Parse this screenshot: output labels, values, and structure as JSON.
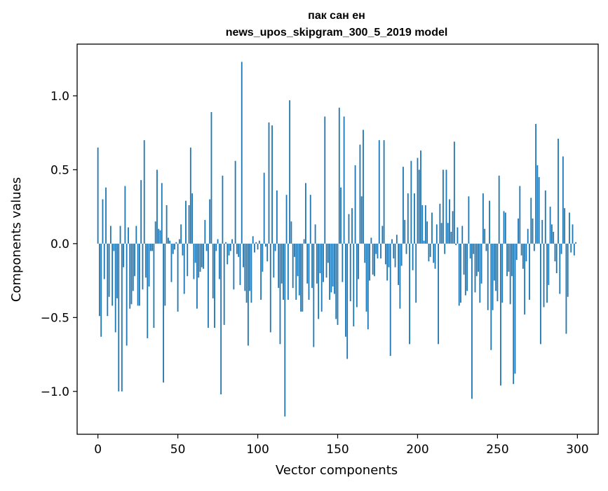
{
  "chart_data": {
    "type": "bar",
    "title_line1": "пак сан ен",
    "title_line2": "news_upos_skipgram_300_5_2019 model",
    "xlabel": "Vector components",
    "ylabel": "Components values",
    "xlim": [
      -13,
      313
    ],
    "ylim": [
      -1.29,
      1.35
    ],
    "xticks": [
      0,
      50,
      100,
      150,
      200,
      250,
      300
    ],
    "xtick_labels": [
      "0",
      "50",
      "100",
      "150",
      "200",
      "250",
      "300"
    ],
    "yticks": [
      -1.0,
      -0.5,
      0.0,
      0.5,
      1.0
    ],
    "ytick_labels": [
      "−1.0",
      "−0.5",
      "0.0",
      "0.5",
      "1.0"
    ],
    "bar_color": "#1f77b4",
    "grid": false,
    "values": [
      0.65,
      -0.49,
      -0.63,
      0.3,
      -0.24,
      0.38,
      -0.49,
      -0.36,
      0.12,
      -0.42,
      -0.05,
      -0.6,
      -0.37,
      -1.0,
      0.12,
      -1.0,
      -0.16,
      0.39,
      -0.69,
      0.11,
      -0.44,
      -0.41,
      -0.32,
      -0.22,
      0.12,
      -0.42,
      -0.42,
      0.43,
      -0.31,
      0.7,
      -0.23,
      -0.64,
      -0.29,
      -0.05,
      -0.05,
      -0.57,
      0.15,
      0.5,
      0.1,
      0.09,
      0.41,
      -0.94,
      -0.42,
      0.26,
      0.04,
      0.02,
      -0.26,
      -0.07,
      -0.04,
      0.01,
      -0.46,
      0.03,
      0.13,
      -0.08,
      -0.34,
      0.29,
      -0.22,
      0.26,
      0.65,
      0.34,
      -0.24,
      -0.13,
      -0.44,
      -0.23,
      -0.19,
      -0.16,
      -0.17,
      0.16,
      -0.05,
      -0.57,
      0.3,
      0.89,
      -0.37,
      -0.57,
      -0.05,
      0.03,
      -0.24,
      -1.02,
      0.46,
      -0.55,
      0.01,
      -0.14,
      -0.08,
      -0.05,
      0.03,
      -0.31,
      0.56,
      -0.07,
      -0.09,
      -0.28,
      1.23,
      -0.16,
      -0.32,
      -0.4,
      -0.69,
      -0.32,
      -0.4,
      0.05,
      -0.06,
      0.01,
      -0.04,
      0.02,
      -0.38,
      -0.19,
      0.48,
      -0.02,
      -0.12,
      0.82,
      -0.6,
      0.8,
      -0.23,
      -0.05,
      0.36,
      -0.3,
      -0.68,
      -0.27,
      -0.38,
      -1.17,
      0.33,
      -0.38,
      0.97,
      0.15,
      -0.3,
      -0.09,
      -0.38,
      -0.22,
      -0.35,
      -0.46,
      -0.46,
      0.03,
      0.41,
      -0.27,
      -0.38,
      0.33,
      -0.3,
      -0.7,
      0.13,
      -0.27,
      -0.51,
      -0.2,
      -0.46,
      -0.26,
      0.86,
      -0.23,
      -0.13,
      -0.38,
      -0.33,
      -0.29,
      -0.34,
      -0.51,
      -0.55,
      0.92,
      0.38,
      -0.26,
      0.86,
      -0.63,
      -0.78,
      0.2,
      -0.39,
      0.24,
      -0.56,
      0.53,
      -0.43,
      -0.24,
      0.67,
      0.32,
      0.77,
      -0.13,
      -0.46,
      -0.58,
      -0.25,
      0.04,
      -0.21,
      -0.22,
      -0.07,
      -0.1,
      0.7,
      -0.1,
      0.12,
      0.7,
      -0.14,
      -0.25,
      -0.16,
      -0.76,
      0.03,
      -0.1,
      -0.16,
      0.06,
      -0.28,
      -0.44,
      -0.15,
      0.52,
      0.16,
      -0.07,
      0.34,
      -0.68,
      0.56,
      -0.18,
      0.34,
      -0.4,
      0.58,
      0.5,
      0.63,
      0.26,
      0.02,
      0.26,
      0.15,
      -0.12,
      -0.09,
      0.21,
      -0.13,
      -0.17,
      0.13,
      -0.68,
      0.27,
      0.14,
      0.5,
      -0.07,
      0.5,
      0.14,
      0.3,
      0.08,
      0.22,
      0.69,
      -0.01,
      0.11,
      -0.42,
      -0.4,
      0.12,
      -0.21,
      -0.35,
      -0.32,
      0.32,
      -0.1,
      -1.05,
      -0.07,
      -0.33,
      -0.22,
      -0.19,
      -0.4,
      -0.27,
      0.34,
      0.1,
      -0.05,
      -0.45,
      0.29,
      -0.72,
      -0.45,
      -0.25,
      -0.32,
      -0.39,
      0.46,
      -0.96,
      -0.4,
      0.22,
      0.21,
      -0.22,
      -0.19,
      -0.41,
      -0.22,
      -0.95,
      -0.88,
      -0.11,
      0.17,
      0.39,
      -0.08,
      -0.17,
      -0.48,
      -0.12,
      0.1,
      -0.38,
      0.31,
      0.17,
      -0.05,
      0.81,
      0.53,
      0.45,
      -0.68,
      0.16,
      -0.43,
      0.36,
      -0.4,
      -0.28,
      0.25,
      0.13,
      0.08,
      -0.12,
      -0.2,
      0.71,
      -0.34,
      -0.07,
      0.59,
      0.24,
      -0.61,
      -0.36,
      0.21,
      -0.06,
      0.13,
      -0.08,
      0.01
    ]
  }
}
